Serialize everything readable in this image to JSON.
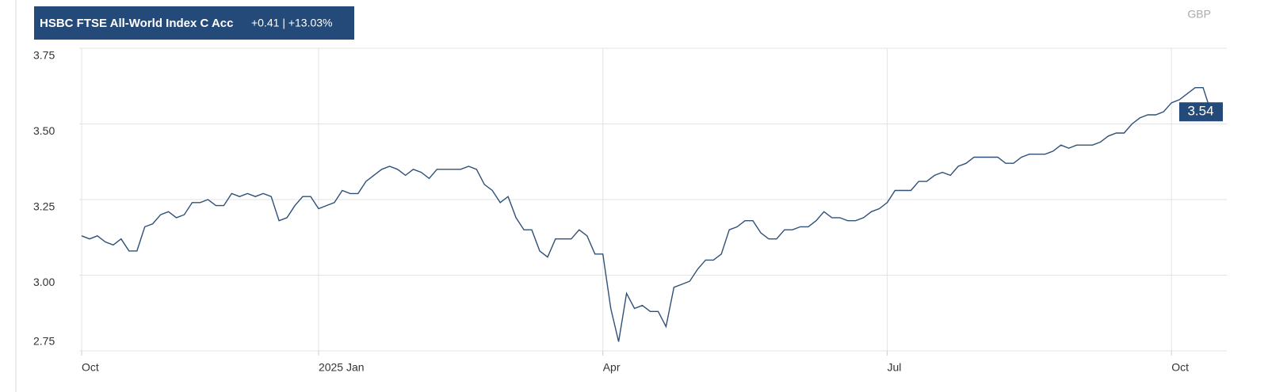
{
  "chart_data": {
    "type": "line",
    "title": "HSBC FTSE All-World Index C Acc",
    "subtitle": "+0.41 | +13.03%",
    "currency": "GBP",
    "categories": [
      "Oct",
      null,
      null,
      null,
      null,
      null,
      null,
      null,
      null,
      null,
      null,
      null,
      null,
      null,
      null,
      null,
      null,
      null,
      null,
      null,
      null,
      null,
      null,
      null,
      null,
      null,
      null,
      null,
      null,
      null,
      "2025 Jan",
      null,
      null,
      null,
      null,
      null,
      null,
      null,
      null,
      null,
      null,
      null,
      null,
      null,
      null,
      null,
      null,
      null,
      null,
      null,
      null,
      null,
      null,
      null,
      null,
      null,
      null,
      null,
      null,
      null,
      null,
      null,
      null,
      null,
      null,
      null,
      "Apr",
      null,
      null,
      null,
      null,
      null,
      null,
      null,
      null,
      null,
      null,
      null,
      null,
      null,
      null,
      null,
      null,
      null,
      null,
      null,
      null,
      null,
      null,
      null,
      null,
      null,
      null,
      null,
      null,
      null,
      null,
      null,
      null,
      null,
      null,
      null,
      "Jul",
      null,
      null,
      null,
      null,
      null,
      null,
      null,
      null,
      null,
      null,
      null,
      null,
      null,
      null,
      null,
      null,
      null,
      null,
      null,
      null,
      null,
      null,
      null,
      null,
      null,
      null,
      null,
      null,
      null,
      null,
      null,
      null,
      null,
      null,
      null,
      "Oct",
      null,
      null,
      null,
      null,
      null,
      null
    ],
    "series": [
      {
        "name": "HSBC FTSE All-World Index C Acc",
        "color": "#2f5077",
        "values": [
          3.13,
          3.12,
          3.13,
          3.11,
          3.1,
          3.12,
          3.08,
          3.08,
          3.16,
          3.17,
          3.2,
          3.21,
          3.19,
          3.2,
          3.24,
          3.24,
          3.25,
          3.23,
          3.23,
          3.27,
          3.26,
          3.27,
          3.26,
          3.27,
          3.26,
          3.18,
          3.19,
          3.23,
          3.26,
          3.26,
          3.22,
          3.23,
          3.24,
          3.28,
          3.27,
          3.27,
          3.31,
          3.33,
          3.35,
          3.36,
          3.35,
          3.33,
          3.35,
          3.34,
          3.32,
          3.35,
          3.35,
          3.35,
          3.35,
          3.36,
          3.35,
          3.3,
          3.28,
          3.24,
          3.26,
          3.19,
          3.15,
          3.15,
          3.08,
          3.06,
          3.12,
          3.12,
          3.12,
          3.15,
          3.13,
          3.07,
          3.07,
          2.89,
          2.78,
          2.94,
          2.89,
          2.9,
          2.88,
          2.88,
          2.83,
          2.96,
          2.97,
          2.98,
          3.02,
          3.05,
          3.05,
          3.07,
          3.15,
          3.16,
          3.18,
          3.18,
          3.14,
          3.12,
          3.12,
          3.15,
          3.15,
          3.16,
          3.16,
          3.18,
          3.21,
          3.19,
          3.19,
          3.18,
          3.18,
          3.19,
          3.21,
          3.22,
          3.24,
          3.28,
          3.28,
          3.28,
          3.31,
          3.31,
          3.33,
          3.34,
          3.33,
          3.36,
          3.37,
          3.39,
          3.39,
          3.39,
          3.39,
          3.37,
          3.37,
          3.39,
          3.4,
          3.4,
          3.4,
          3.41,
          3.43,
          3.42,
          3.43,
          3.43,
          3.43,
          3.44,
          3.46,
          3.47,
          3.47,
          3.5,
          3.52,
          3.53,
          3.53,
          3.54,
          3.57,
          3.58,
          3.6,
          3.62,
          3.62,
          3.54,
          3.54
        ]
      }
    ],
    "ylim": [
      2.75,
      3.75
    ],
    "yticks": [
      2.75,
      {
        "value": 3,
        "label": "3.00"
      },
      3.25,
      {
        "value": 3.5,
        "label": "3.50"
      },
      3.75
    ],
    "grid": true
  }
}
